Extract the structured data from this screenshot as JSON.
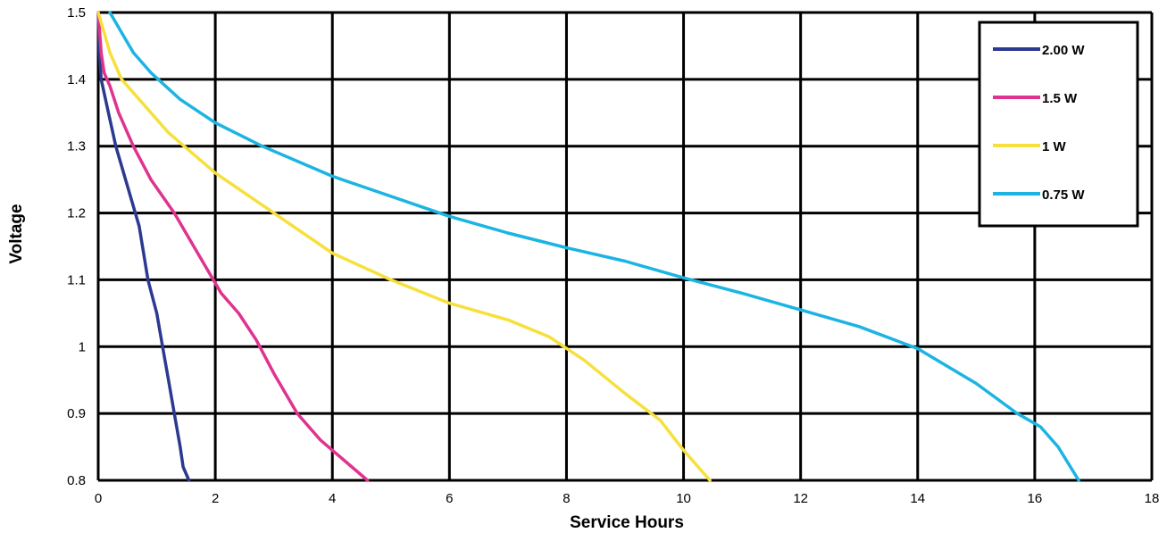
{
  "chart_data": {
    "type": "line",
    "title": "",
    "xlabel": "Service Hours",
    "ylabel": "Voltage",
    "xlim": [
      0,
      18
    ],
    "ylim": [
      0.8,
      1.5
    ],
    "x_ticks": [
      0,
      2,
      4,
      6,
      8,
      10,
      12,
      14,
      16,
      18
    ],
    "x_tick_labels": [
      "0",
      "2",
      "4",
      "6",
      "8",
      "10",
      "12",
      "14",
      "16",
      "18"
    ],
    "y_ticks": [
      0.8,
      0.9,
      1.0,
      1.1,
      1.2,
      1.3,
      1.4,
      1.5
    ],
    "y_tick_labels": [
      "0.8",
      "0.9",
      "1",
      "1.1",
      "1.2",
      "1.3",
      "1.4",
      "1.5"
    ],
    "grid": true,
    "legend_position": "top-right",
    "series": [
      {
        "name": "2.00  W",
        "color": "#2b3990",
        "points": [
          [
            0,
            1.5
          ],
          [
            0.02,
            1.44
          ],
          [
            0.05,
            1.4
          ],
          [
            0.15,
            1.36
          ],
          [
            0.3,
            1.3
          ],
          [
            0.5,
            1.24
          ],
          [
            0.7,
            1.18
          ],
          [
            0.85,
            1.1
          ],
          [
            1.0,
            1.05
          ],
          [
            1.1,
            1.0
          ],
          [
            1.2,
            0.95
          ],
          [
            1.3,
            0.9
          ],
          [
            1.4,
            0.85
          ],
          [
            1.45,
            0.82
          ],
          [
            1.55,
            0.8
          ]
        ]
      },
      {
        "name": "1.5  W",
        "color": "#e0338f",
        "points": [
          [
            0,
            1.5
          ],
          [
            0.05,
            1.44
          ],
          [
            0.1,
            1.41
          ],
          [
            0.2,
            1.39
          ],
          [
            0.35,
            1.35
          ],
          [
            0.6,
            1.3
          ],
          [
            0.9,
            1.25
          ],
          [
            1.3,
            1.2
          ],
          [
            1.7,
            1.14
          ],
          [
            2.1,
            1.08
          ],
          [
            2.4,
            1.05
          ],
          [
            2.7,
            1.01
          ],
          [
            3.0,
            0.96
          ],
          [
            3.4,
            0.9
          ],
          [
            3.8,
            0.86
          ],
          [
            4.2,
            0.83
          ],
          [
            4.6,
            0.8
          ]
        ]
      },
      {
        "name": "1  W",
        "color": "#f7e03c",
        "points": [
          [
            0,
            1.5
          ],
          [
            0.1,
            1.47
          ],
          [
            0.2,
            1.44
          ],
          [
            0.4,
            1.4
          ],
          [
            0.7,
            1.37
          ],
          [
            1.2,
            1.32
          ],
          [
            2.0,
            1.26
          ],
          [
            3.0,
            1.2
          ],
          [
            4.0,
            1.14
          ],
          [
            5.0,
            1.1
          ],
          [
            6.0,
            1.065
          ],
          [
            7.0,
            1.04
          ],
          [
            7.7,
            1.015
          ],
          [
            8.3,
            0.98
          ],
          [
            9.0,
            0.93
          ],
          [
            9.6,
            0.89
          ],
          [
            10.0,
            0.845
          ],
          [
            10.45,
            0.8
          ]
        ]
      },
      {
        "name": "0.75  W",
        "color": "#1cb4e3",
        "points": [
          [
            0.2,
            1.5
          ],
          [
            0.4,
            1.47
          ],
          [
            0.6,
            1.44
          ],
          [
            0.9,
            1.41
          ],
          [
            1.4,
            1.37
          ],
          [
            2.0,
            1.335
          ],
          [
            2.8,
            1.3
          ],
          [
            4.0,
            1.255
          ],
          [
            5.0,
            1.225
          ],
          [
            6.0,
            1.195
          ],
          [
            7.0,
            1.17
          ],
          [
            8.0,
            1.148
          ],
          [
            9.0,
            1.128
          ],
          [
            10.0,
            1.103
          ],
          [
            11.0,
            1.08
          ],
          [
            12.0,
            1.055
          ],
          [
            13.0,
            1.03
          ],
          [
            14.0,
            0.997
          ],
          [
            15.0,
            0.945
          ],
          [
            15.7,
            0.9
          ],
          [
            16.1,
            0.88
          ],
          [
            16.4,
            0.85
          ],
          [
            16.75,
            0.8
          ]
        ]
      }
    ]
  }
}
